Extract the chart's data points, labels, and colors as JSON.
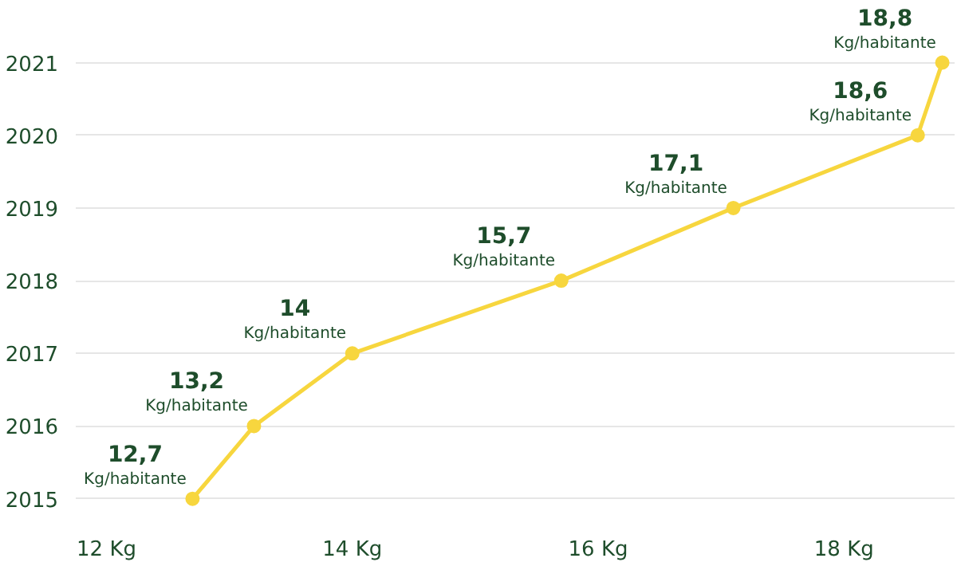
{
  "chart_data": {
    "type": "line",
    "orientation": "horizontal",
    "categories": [
      "2021",
      "2020",
      "2019",
      "2018",
      "2017",
      "2016",
      "2015"
    ],
    "values": [
      18.8,
      18.6,
      17.1,
      15.7,
      14,
      13.2,
      12.7
    ],
    "color": "#f7d63e",
    "value_labels": [
      "18,8\nKg/habitante",
      "18,6\nKg/habitante",
      "17,1\nKg/habitante",
      "15,7\nKg/habitante",
      "14\nKg/habitante",
      "13,2\nKg/habitante",
      "12,7\nKg/habitante"
    ],
    "xlim": [
      11.75,
      18.9
    ],
    "xticks": [
      {
        "value": 12,
        "label": "12 Kg"
      },
      {
        "value": 14,
        "label": "14 Kg"
      },
      {
        "value": 16,
        "label": "16 Kg"
      },
      {
        "value": 18,
        "label": "18 Kg"
      }
    ],
    "grid": "y",
    "marker": "circle",
    "line_style": "solid"
  }
}
